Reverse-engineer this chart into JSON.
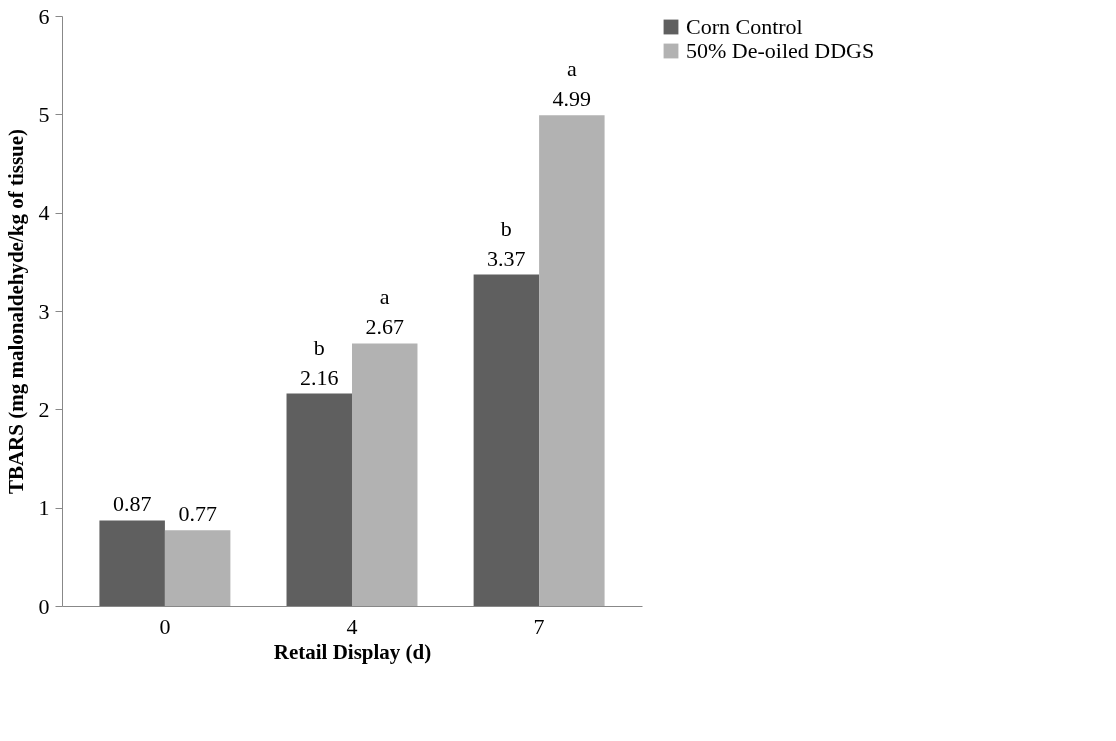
{
  "chart_data": {
    "type": "bar",
    "xlabel": "Retail Display (d)",
    "ylabel": "TBARS (mg malonaldehyde/kg of tissue)",
    "categories": [
      "0",
      "4",
      "7"
    ],
    "series": [
      {
        "name": "Corn Control",
        "color": "#5f5f5f",
        "values": [
          0.87,
          2.16,
          3.37
        ]
      },
      {
        "name": "50% De-oiled DDGS",
        "color": "#b2b2b2",
        "values": [
          0.77,
          2.67,
          4.99
        ]
      }
    ],
    "ylim": [
      0,
      6
    ],
    "yticks": [
      0,
      1,
      2,
      3,
      4,
      5,
      6
    ],
    "data_labels": true,
    "legend": "right",
    "annotations": [
      {
        "text": "b",
        "x": "4",
        "y": 2.16
      },
      {
        "text": "a",
        "x": "4",
        "y": 2.67
      },
      {
        "text": "b",
        "x": "7",
        "y": 3.37
      },
      {
        "text": "a",
        "x": "7",
        "y": 4.99
      }
    ]
  }
}
